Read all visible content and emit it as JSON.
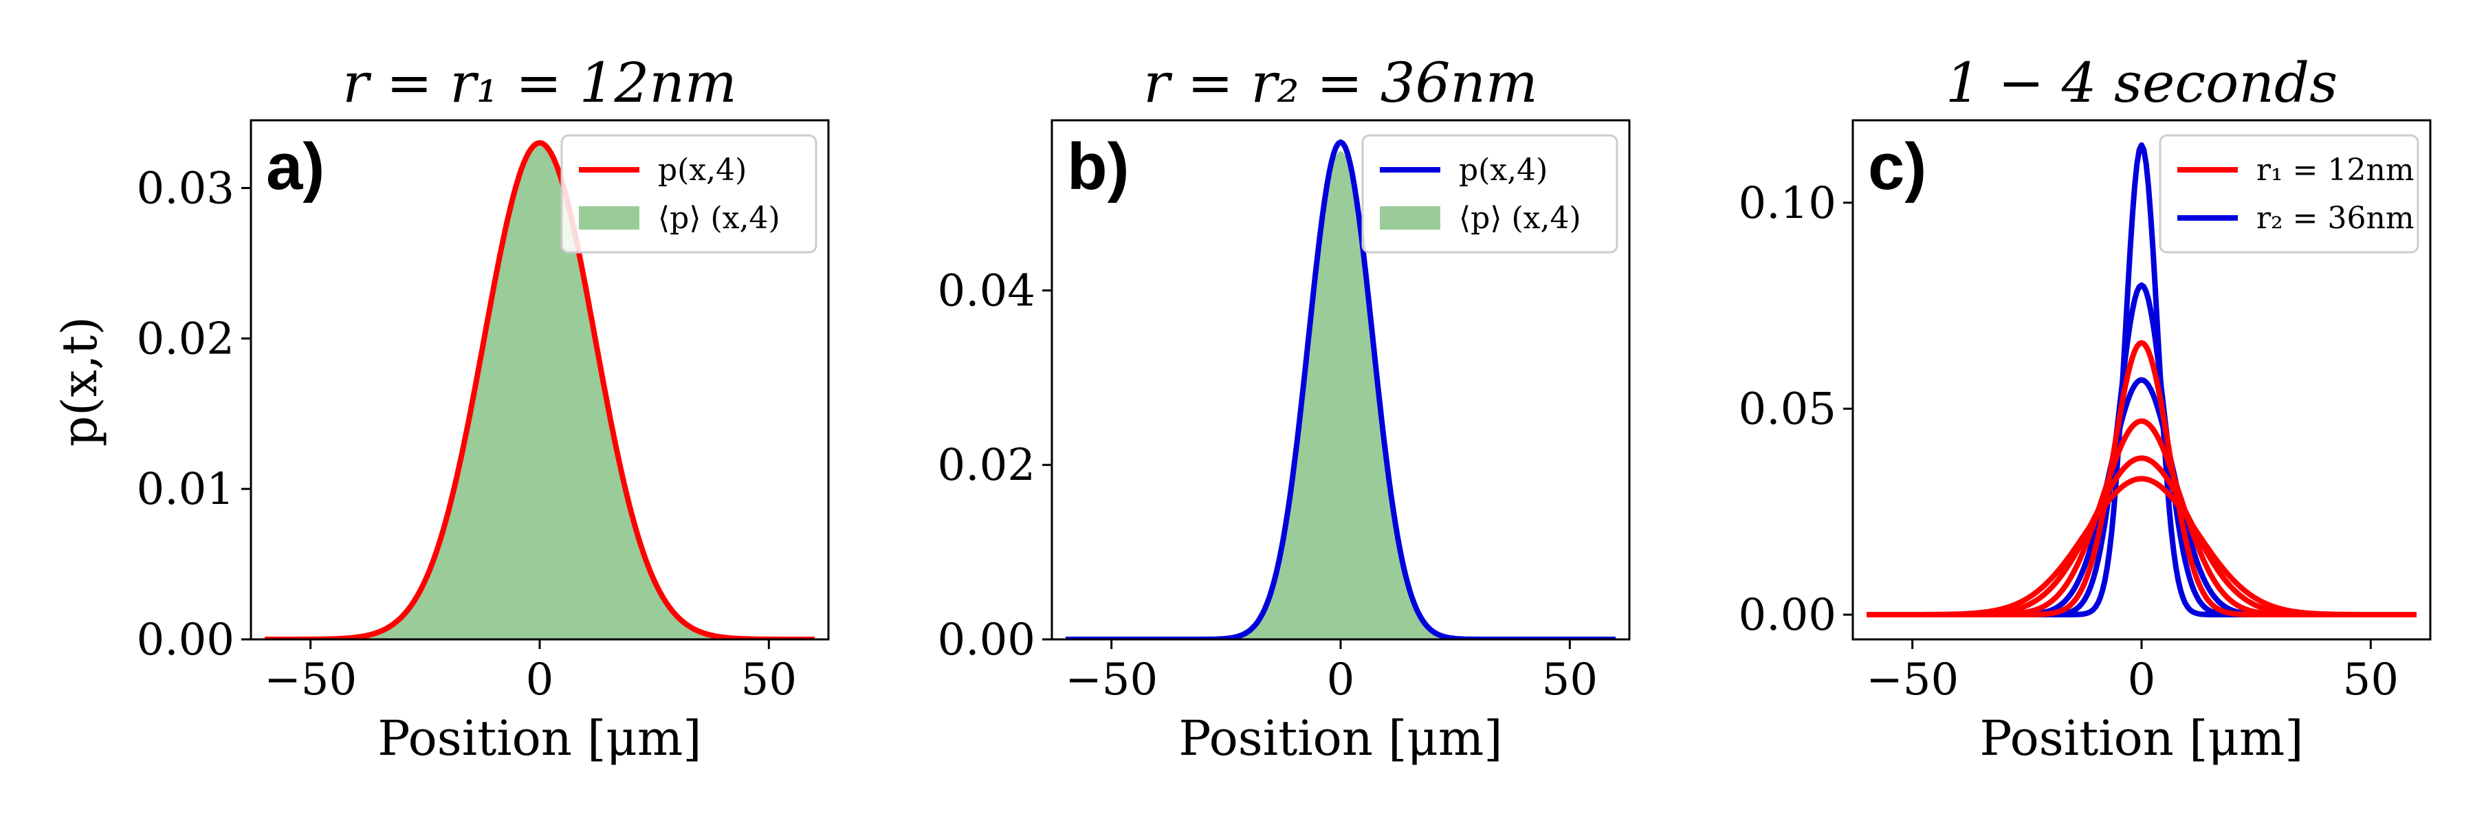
{
  "figure": {
    "ylabel": "p(x,t)"
  },
  "chart_data": [
    {
      "type": "area",
      "panel_label": "a)",
      "title": "r = r₁ = 12nm",
      "xlabel": "Position [μm]",
      "ylabel": "p(x,t)",
      "xlim": [
        -63,
        63
      ],
      "ylim": [
        0,
        0.0345
      ],
      "xticks": [
        -50,
        0,
        50
      ],
      "xtick_labels": [
        "−50",
        "0",
        "50"
      ],
      "yticks": [
        0.0,
        0.01,
        0.02,
        0.03
      ],
      "ytick_labels": [
        "0.00",
        "0.01",
        "0.02",
        "0.03"
      ],
      "grid": false,
      "legend_position": "top-right",
      "curve_range": [
        -60,
        60
      ],
      "series": [
        {
          "name": "p(x,4)",
          "kind": "line",
          "color": "#ff0000",
          "peak": 0.033,
          "sigma": 12.1,
          "center": 0
        },
        {
          "name": "⟨p⟩ (x,4)",
          "kind": "fill",
          "color": "#99cc99",
          "peak": 0.0328,
          "sigma": 12.1,
          "center": -0.2
        }
      ]
    },
    {
      "type": "area",
      "panel_label": "b)",
      "title": "r = r₂ = 36nm",
      "xlabel": "Position [μm]",
      "ylabel": "",
      "xlim": [
        -63,
        63
      ],
      "ylim": [
        0,
        0.0595
      ],
      "xticks": [
        -50,
        0,
        50
      ],
      "xtick_labels": [
        "−50",
        "0",
        "50"
      ],
      "yticks": [
        0.0,
        0.02,
        0.04
      ],
      "ytick_labels": [
        "0.00",
        "0.02",
        "0.04"
      ],
      "grid": false,
      "legend_position": "top-right",
      "curve_range": [
        -60,
        60
      ],
      "series": [
        {
          "name": "p(x,4)",
          "kind": "line",
          "color": "#0000dd",
          "peak": 0.057,
          "sigma": 7.0,
          "center": 0
        },
        {
          "name": "⟨p⟩ (x,4)",
          "kind": "fill",
          "color": "#99cc99",
          "peak": 0.056,
          "sigma": 7.0,
          "center": 0
        }
      ]
    },
    {
      "type": "line",
      "panel_label": "c)",
      "title": "1 − 4 seconds",
      "xlabel": "Position [μm]",
      "ylabel": "",
      "xlim": [
        -63,
        63
      ],
      "ylim": [
        -0.006,
        0.12
      ],
      "xticks": [
        -50,
        0,
        50
      ],
      "xtick_labels": [
        "−50",
        "0",
        "50"
      ],
      "yticks": [
        0.0,
        0.05,
        0.1
      ],
      "ytick_labels": [
        "0.00",
        "0.05",
        "0.10"
      ],
      "grid": false,
      "legend_position": "top-right",
      "curve_range": [
        -60,
        60
      ],
      "legend": [
        {
          "name": "r₁ = 12nm",
          "color": "#ff0000"
        },
        {
          "name": "r₂ = 36nm",
          "color": "#0000dd"
        }
      ],
      "series": [
        {
          "group": "r₂ = 36nm",
          "color": "#0000dd",
          "peak": 0.114,
          "sigma": 3.5,
          "center": 0
        },
        {
          "group": "r₂ = 36nm",
          "color": "#0000dd",
          "peak": 0.08,
          "sigma": 5.0,
          "center": 0
        },
        {
          "group": "r₂ = 36nm",
          "color": "#0000dd",
          "peak": 0.057,
          "sigma": 7.0,
          "center": 0
        },
        {
          "group": "r₁ = 12nm",
          "color": "#ff0000",
          "peak": 0.066,
          "sigma": 6.0,
          "center": 0
        },
        {
          "group": "r₁ = 12nm",
          "color": "#ff0000",
          "peak": 0.047,
          "sigma": 8.5,
          "center": 0
        },
        {
          "group": "r₁ = 12nm",
          "color": "#ff0000",
          "peak": 0.038,
          "sigma": 10.5,
          "center": 0
        },
        {
          "group": "r₁ = 12nm",
          "color": "#ff0000",
          "peak": 0.033,
          "sigma": 12.1,
          "center": 0
        }
      ]
    }
  ]
}
